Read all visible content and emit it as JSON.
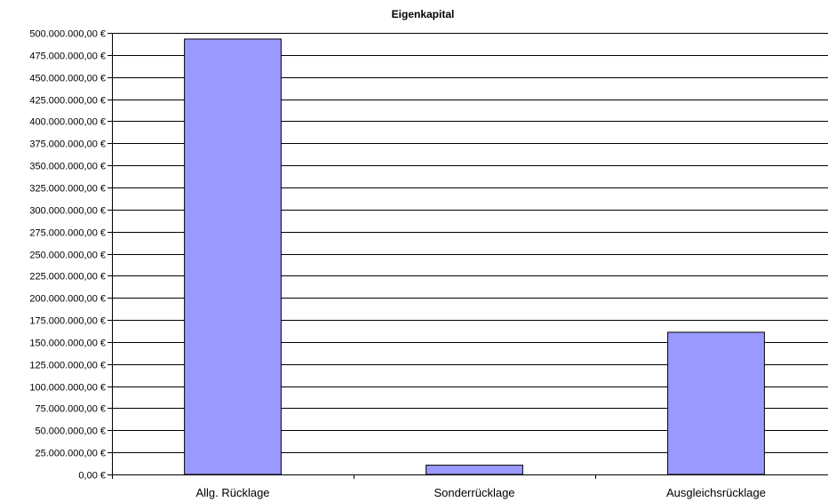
{
  "chart_data": {
    "type": "bar",
    "title": "Eigenkapital",
    "xlabel": "",
    "ylabel": "",
    "categories": [
      "Allg. Rücklage",
      "Sonderrücklage",
      "Ausgleichsrücklage"
    ],
    "values": [
      493000000,
      10500000,
      161000000
    ],
    "ylim": [
      0,
      500000000
    ],
    "ytick_step": 25000000,
    "ytick_labels": [
      "0,00 €",
      "25.000.000,00 €",
      "50.000.000,00 €",
      "75.000.000,00 €",
      "100.000.000,00 €",
      "125.000.000,00 €",
      "150.000.000,00 €",
      "175.000.000,00 €",
      "200.000.000,00 €",
      "225.000.000,00 €",
      "250.000.000,00 €",
      "275.000.000,00 €",
      "300.000.000,00 €",
      "325.000.000,00 €",
      "350.000.000,00 €",
      "375.000.000,00 €",
      "400.000.000,00 €",
      "425.000.000,00 €",
      "450.000.000,00 €",
      "475.000.000,00 €",
      "500.000.000,00 €"
    ],
    "grid": true,
    "legend": "none",
    "colors": {
      "bar_fill": "#9999ff",
      "bar_stroke": "#000000",
      "grid": "#000000"
    }
  }
}
